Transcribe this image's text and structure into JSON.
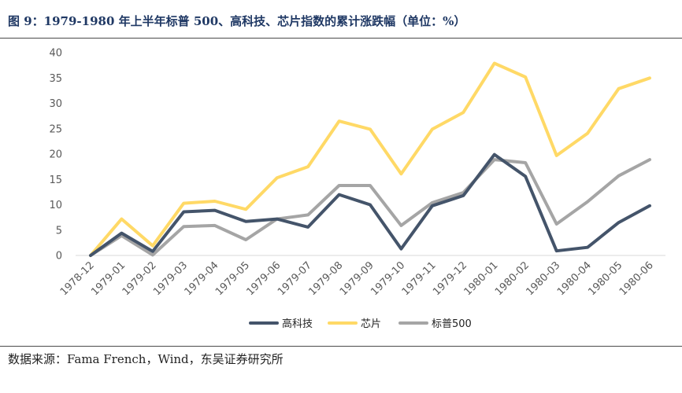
{
  "header": {
    "title": "图 9：1979-1980 年上半年标普 500、高科技、芯片指数的累计涨跌幅（单位：%）"
  },
  "footer": {
    "source": "数据来源：Fama French，Wind，东吴证券研究所"
  },
  "chart_data": {
    "type": "line",
    "title": "",
    "xlabel": "",
    "ylabel": "",
    "ylim": [
      0,
      40
    ],
    "yticks": [
      0,
      5,
      10,
      15,
      20,
      25,
      30,
      35,
      40
    ],
    "grid": false,
    "legend_position": "bottom",
    "categories": [
      "1978-12",
      "1979-01",
      "1979-02",
      "1979-03",
      "1979-04",
      "1979-05",
      "1979-06",
      "1979-07",
      "1979-08",
      "1979-09",
      "1979-10",
      "1979-11",
      "1979-12",
      "1980-01",
      "1980-02",
      "1980-03",
      "1980-04",
      "1980-05",
      "1980-06"
    ],
    "series": [
      {
        "name": "高科技",
        "color": "#44546a",
        "values": [
          0,
          4.4,
          0.8,
          8.6,
          8.9,
          6.7,
          7.2,
          5.6,
          12.0,
          10.0,
          1.3,
          9.8,
          11.8,
          19.9,
          15.6,
          0.9,
          1.6,
          6.5,
          9.8
        ]
      },
      {
        "name": "芯片",
        "color": "#ffd966",
        "values": [
          0,
          7.2,
          1.9,
          10.3,
          10.7,
          9.1,
          15.3,
          17.5,
          26.5,
          24.9,
          16.1,
          24.9,
          28.2,
          37.9,
          35.2,
          19.7,
          24.1,
          32.9,
          35.0
        ]
      },
      {
        "name": "标普500",
        "color": "#a5a5a5",
        "values": [
          0,
          3.9,
          0.1,
          5.7,
          5.9,
          3.1,
          7.2,
          8.0,
          13.8,
          13.8,
          5.9,
          10.4,
          12.4,
          18.9,
          18.3,
          6.2,
          10.6,
          15.7,
          18.9
        ]
      }
    ]
  }
}
